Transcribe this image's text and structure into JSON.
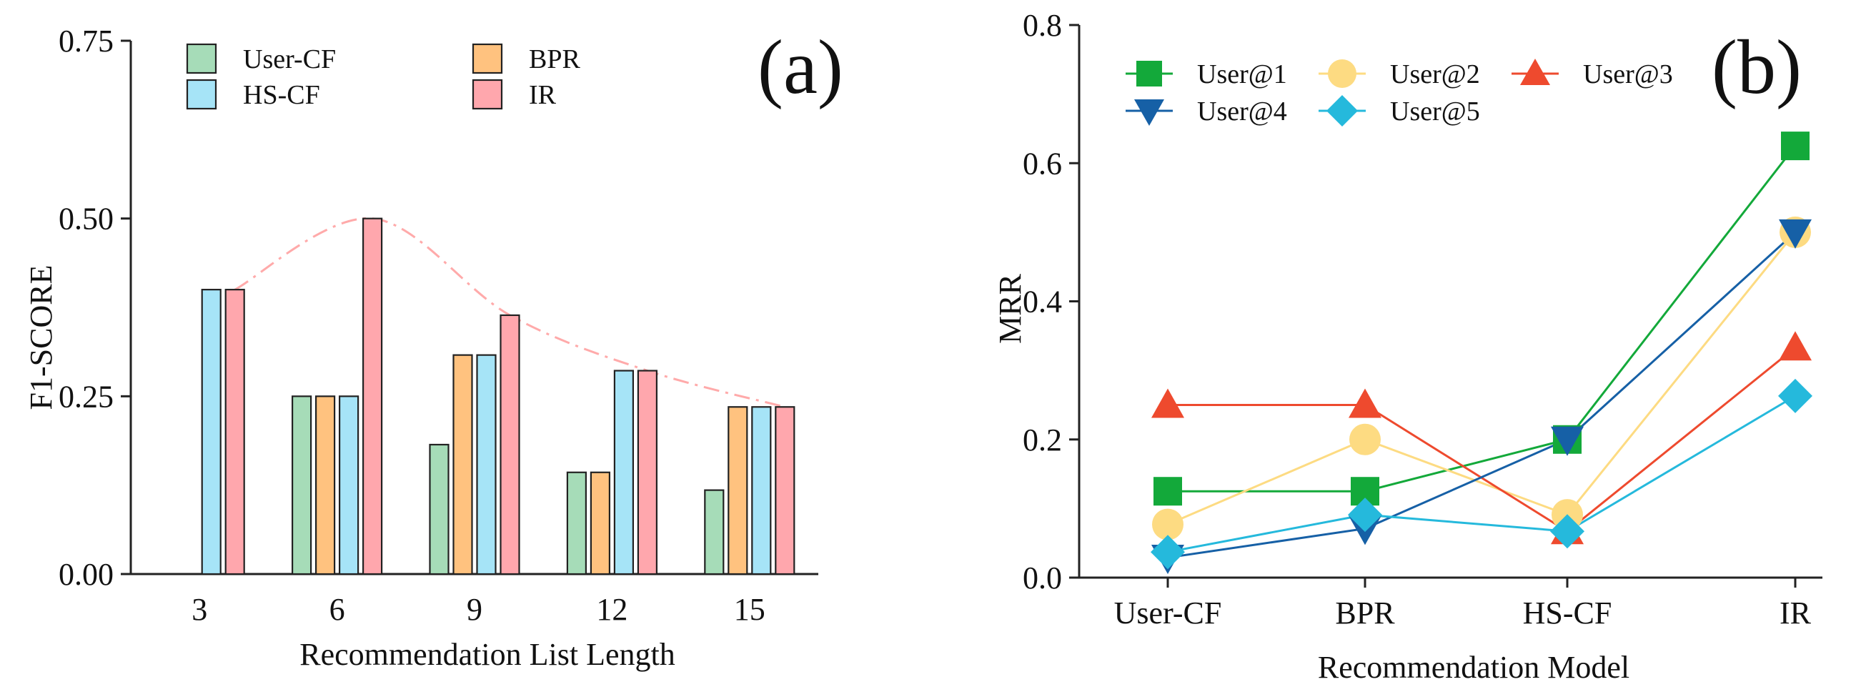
{
  "colors": {
    "User-CF": "#a6dcb8",
    "BPR": "#ffc27f",
    "HS-CF": "#a6e4f7",
    "IR": "#ffa7ad",
    "trend": "#ffaaaa",
    "User@1": "#13a93a",
    "User@2": "#fddb82",
    "User@3": "#ee4a2e",
    "User@4": "#1660a6",
    "User@5": "#25b9dc"
  },
  "chart_data": [
    {
      "type": "bar",
      "panel_label": "(a)",
      "xlabel": "Recommendation List Length",
      "ylabel": "F1-SCORE",
      "ylim": [
        0,
        0.75
      ],
      "yticks": [
        "0.00",
        "0.25",
        "0.50",
        "0.75"
      ],
      "categories": [
        "3",
        "6",
        "9",
        "12",
        "15"
      ],
      "series": [
        {
          "name": "User-CF",
          "values": [
            0,
            0.25,
            0.182,
            0.143,
            0.118
          ]
        },
        {
          "name": "BPR",
          "values": [
            0,
            0.25,
            0.308,
            0.143,
            0.235
          ]
        },
        {
          "name": "HS-CF",
          "values": [
            0.4,
            0.25,
            0.308,
            0.286,
            0.235
          ]
        },
        {
          "name": "IR",
          "values": [
            0.4,
            0.5,
            0.364,
            0.286,
            0.235
          ]
        }
      ],
      "trend_line": {
        "style": "dash-dot",
        "follows": "IR"
      },
      "legend": {
        "placement": "top-left",
        "columns": 2
      }
    },
    {
      "type": "line",
      "panel_label": "(b)",
      "xlabel": "Recommendation Model",
      "ylabel": "MRR",
      "ylim": [
        0,
        0.8
      ],
      "yticks": [
        "0.0",
        "0.2",
        "0.4",
        "0.6",
        "0.8"
      ],
      "categories": [
        "User-CF",
        "BPR",
        "HS-CF",
        "IR"
      ],
      "series": [
        {
          "name": "User@1",
          "marker": "square",
          "values": [
            0.125,
            0.125,
            0.2,
            0.625
          ]
        },
        {
          "name": "User@2",
          "marker": "circle",
          "values": [
            0.077,
            0.2,
            0.091,
            0.5
          ]
        },
        {
          "name": "User@3",
          "marker": "triangle-up",
          "values": [
            0.25,
            0.25,
            0.067,
            0.333
          ]
        },
        {
          "name": "User@4",
          "marker": "triangle-down",
          "values": [
            0.029,
            0.071,
            0.2,
            0.5
          ]
        },
        {
          "name": "User@5",
          "marker": "diamond",
          "values": [
            0.037,
            0.091,
            0.067,
            0.263
          ]
        }
      ],
      "legend": {
        "placement": "top-left",
        "columns": 3
      }
    }
  ]
}
